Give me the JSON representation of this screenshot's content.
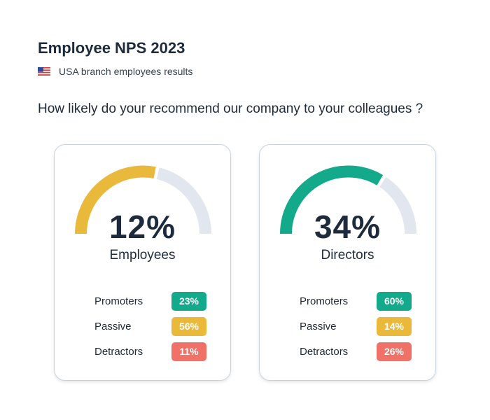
{
  "title": "Employee NPS 2023",
  "subtitle": "USA branch employees results",
  "question": "How likely do your recommend our company to your colleagues ?",
  "colors": {
    "promoters": "#13a98b",
    "passive": "#eab93a",
    "detractors": "#ef7167",
    "track": "#e2e7ef"
  },
  "chart_data": [
    {
      "type": "gauge",
      "group": "Employees",
      "nps_label": "12%",
      "nps": 12,
      "gauge_color": "#e8b93a",
      "categories": [
        "Promoters",
        "Passive",
        "Detractors"
      ],
      "values": [
        "23%",
        "56%",
        "11%"
      ],
      "range": [
        -100,
        100
      ]
    },
    {
      "type": "gauge",
      "group": "Directors",
      "nps_label": "34%",
      "nps": 34,
      "gauge_color": "#13a98b",
      "categories": [
        "Promoters",
        "Passive",
        "Detractors"
      ],
      "values": [
        "60%",
        "14%",
        "26%"
      ],
      "range": [
        -100,
        100
      ]
    }
  ]
}
